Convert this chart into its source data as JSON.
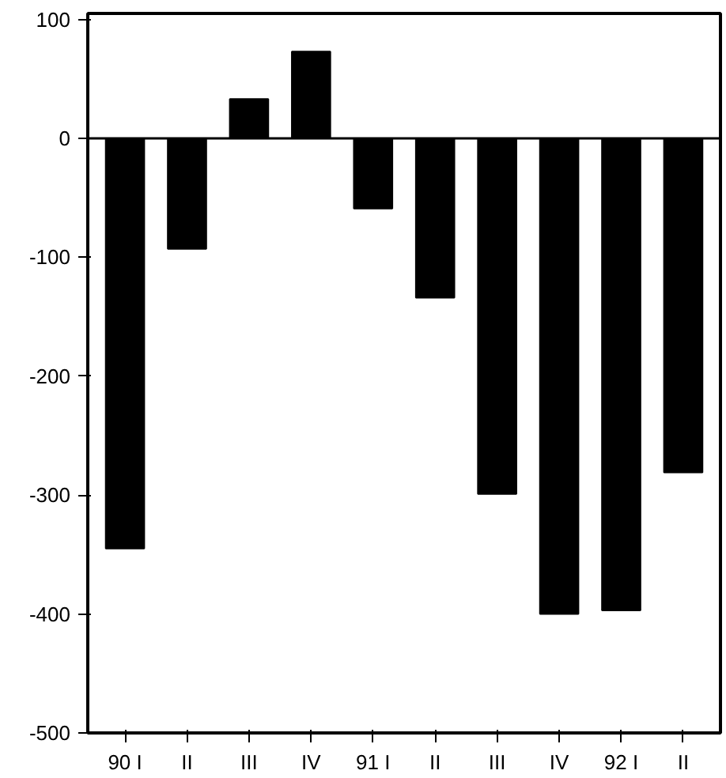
{
  "chart_data": {
    "type": "bar",
    "categories": [
      "90 I",
      "II",
      "III",
      "IV",
      "91 I",
      "II",
      "III",
      "IV",
      "92 I",
      "II"
    ],
    "values": [
      -345,
      -93,
      33,
      73,
      -59,
      -134,
      -299,
      -400,
      -397,
      -281
    ],
    "color": "#000000",
    "ylim": [
      -500,
      105
    ],
    "yticks": [
      -500,
      -400,
      -300,
      -200,
      -100,
      0,
      100
    ],
    "grid": false,
    "ref_lines": [
      {
        "axis": "y",
        "value": 0,
        "color": "#000000"
      }
    ]
  }
}
